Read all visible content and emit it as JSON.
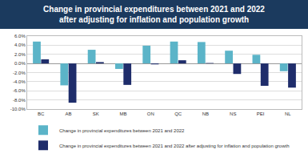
{
  "chart_data": {
    "type": "bar",
    "title": [
      "Change in provincial expenditures between 2021 and 2022",
      "after adjusting for inflation and population growth"
    ],
    "categories": [
      "BC",
      "AB",
      "SK",
      "MB",
      "ON",
      "QC",
      "NB",
      "NS",
      "PEI",
      "NL"
    ],
    "series": [
      {
        "name": "Change in provincial expenditures between 2021 and 2022",
        "color": "#5bb4c8",
        "values": [
          4.8,
          -4.8,
          3.0,
          -1.2,
          3.9,
          4.8,
          4.7,
          2.8,
          1.9,
          -1.7
        ]
      },
      {
        "name": "Change in provincial expenditures between 2021 and 2022 after adjusting for inflation and population growth",
        "color": "#1f2d6b",
        "values": [
          0.9,
          -8.6,
          0.3,
          -4.7,
          -0.2,
          0.7,
          0.1,
          -2.3,
          -4.9,
          -5.3
        ]
      }
    ],
    "ylim": [
      -10,
      6
    ],
    "yticks": [
      {
        "value": -10,
        "label": "-10.0%"
      },
      {
        "value": -8,
        "label": "-8.0%"
      },
      {
        "value": -6,
        "label": "-6.0%"
      },
      {
        "value": -4,
        "label": "-4.0%"
      },
      {
        "value": -2,
        "label": "-2.0%"
      },
      {
        "value": 0,
        "label": "0.0%"
      },
      {
        "value": 2,
        "label": "2.0%"
      },
      {
        "value": 4,
        "label": "4.0%"
      },
      {
        "value": 6,
        "label": "6.0%"
      }
    ],
    "grid": true,
    "legend": "bottom left"
  }
}
